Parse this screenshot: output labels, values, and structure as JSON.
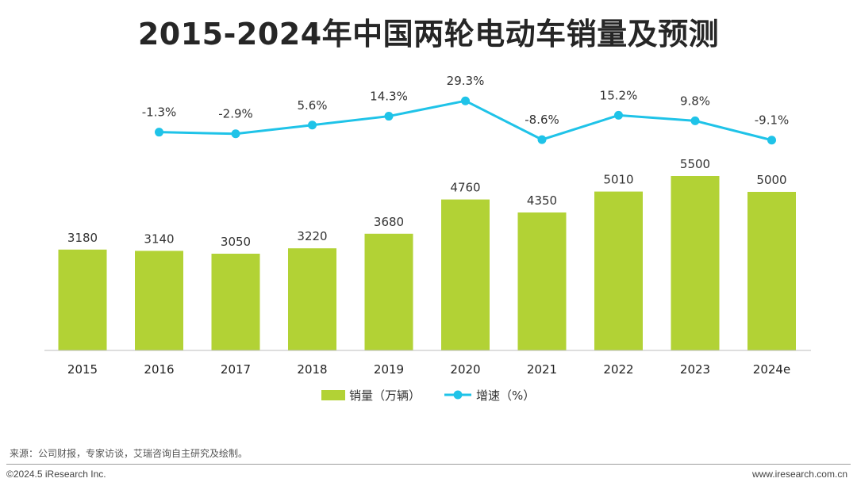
{
  "title": "2015-2024年中国两轮电动车销量及预测",
  "chart_data": {
    "type": "bar+line",
    "categories": [
      "2015",
      "2016",
      "2017",
      "2018",
      "2019",
      "2020",
      "2021",
      "2022",
      "2023",
      "2024e"
    ],
    "series": [
      {
        "name": "销量（万辆）",
        "type": "bar",
        "color": "#b2d235",
        "values": [
          3180,
          3140,
          3050,
          3220,
          3680,
          4760,
          4350,
          5010,
          5500,
          5000
        ]
      },
      {
        "name": "增速（%）",
        "type": "line",
        "color": "#1fc3e8",
        "values": [
          null,
          -1.3,
          -2.9,
          5.6,
          14.3,
          29.3,
          -8.6,
          15.2,
          9.8,
          -9.1
        ]
      }
    ],
    "bar_labels": [
      "3180",
      "3140",
      "3050",
      "3220",
      "3680",
      "4760",
      "4350",
      "5010",
      "5500",
      "5000"
    ],
    "line_labels": [
      "",
      "-1.3%",
      "-2.9%",
      "5.6%",
      "14.3%",
      "29.3%",
      "-8.6%",
      "15.2%",
      "9.8%",
      "-9.1%"
    ],
    "legend_position": "bottom",
    "grid": false
  },
  "footer": {
    "source": "来源：公司财报，专家访谈，艾瑞咨询自主研究及绘制。",
    "copyright": "©2024.5 iResearch Inc.",
    "website": "www.iresearch.com.cn"
  }
}
